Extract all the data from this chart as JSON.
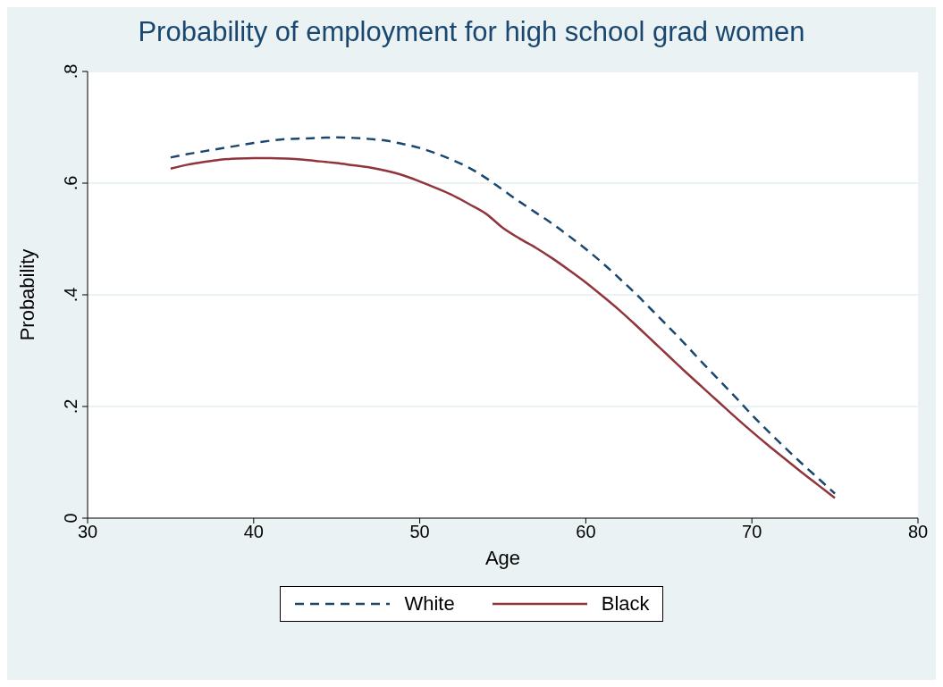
{
  "chart_data": {
    "type": "line",
    "title": "Probability of employment for high school grad women",
    "xlabel": "Age",
    "ylabel": "Probability",
    "x": [
      35,
      36,
      37,
      38,
      39,
      40,
      41,
      42,
      43,
      44,
      45,
      46,
      47,
      48,
      49,
      50,
      51,
      52,
      53,
      54,
      55,
      56,
      57,
      58,
      59,
      60,
      61,
      62,
      63,
      64,
      65,
      66,
      67,
      68,
      69,
      70,
      71,
      72,
      73,
      74,
      75
    ],
    "series": [
      {
        "name": "White",
        "color": "#1a476f",
        "line_style": "dashed",
        "values": [
          0.646,
          0.652,
          0.657,
          0.662,
          0.667,
          0.672,
          0.676,
          0.679,
          0.68,
          0.681,
          0.682,
          0.681,
          0.679,
          0.676,
          0.67,
          0.663,
          0.653,
          0.641,
          0.627,
          0.609,
          0.588,
          0.567,
          0.547,
          0.527,
          0.505,
          0.482,
          0.457,
          0.43,
          0.402,
          0.372,
          0.342,
          0.311,
          0.279,
          0.248,
          0.217,
          0.185,
          0.155,
          0.126,
          0.098,
          0.071,
          0.044
        ]
      },
      {
        "name": "Black",
        "color": "#90353b",
        "line_style": "solid",
        "values": [
          0.626,
          0.633,
          0.638,
          0.642,
          0.644,
          0.645,
          0.645,
          0.644,
          0.642,
          0.639,
          0.636,
          0.632,
          0.628,
          0.622,
          0.614,
          0.603,
          0.591,
          0.578,
          0.562,
          0.545,
          0.52,
          0.501,
          0.484,
          0.465,
          0.444,
          0.422,
          0.398,
          0.373,
          0.346,
          0.318,
          0.29,
          0.262,
          0.235,
          0.208,
          0.181,
          0.155,
          0.13,
          0.106,
          0.082,
          0.059,
          0.036
        ]
      }
    ],
    "xlim": [
      30,
      80
    ],
    "xticks": [
      30,
      40,
      50,
      60,
      70,
      80
    ],
    "ylim": [
      0,
      0.8
    ],
    "yticks": [
      {
        "value": 0,
        "label": "0"
      },
      {
        "value": 0.2,
        "label": ".2"
      },
      {
        "value": 0.4,
        "label": ".4"
      },
      {
        "value": 0.6,
        "label": ".6"
      },
      {
        "value": 0.8,
        "label": ".8"
      }
    ],
    "grid": "y",
    "legend": "bottom",
    "marker": "none"
  }
}
